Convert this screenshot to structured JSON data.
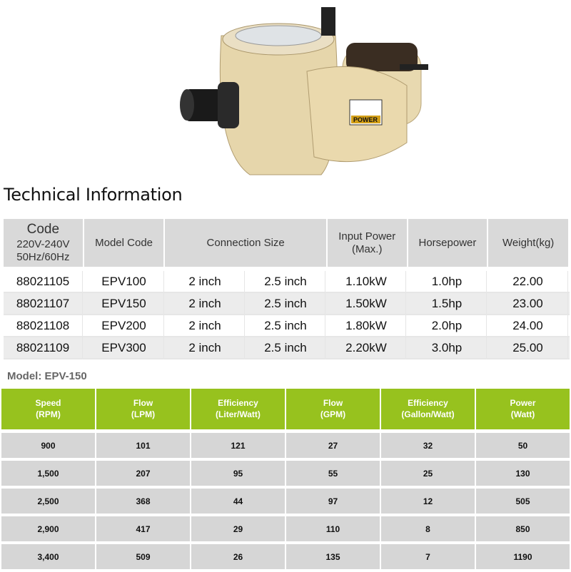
{
  "product_image": {
    "label": "POWER",
    "colors": {
      "body": "#e4d3a8",
      "pipe": "#1a1a1a"
    }
  },
  "title": "Technical Information",
  "spec_table": {
    "headers": {
      "code": "Code",
      "code_sub1": "220V-240V",
      "code_sub2": "50Hz/60Hz",
      "model_code": "Model Code",
      "connection": "Connection Size",
      "input_power": "Input Power",
      "input_power_sub": "(Max.)",
      "horsepower": "Horsepower",
      "weight": "Weight(kg)"
    },
    "rows": [
      [
        "88021105",
        "EPV100",
        "2 inch",
        "2.5 inch",
        "1.10kW",
        "1.0hp",
        "22.00"
      ],
      [
        "88021107",
        "EPV150",
        "2 inch",
        "2.5 inch",
        "1.50kW",
        "1.5hp",
        "23.00"
      ],
      [
        "88021108",
        "EPV200",
        "2 inch",
        "2.5 inch",
        "1.80kW",
        "2.0hp",
        "24.00"
      ],
      [
        "88021109",
        "EPV300",
        "2 inch",
        "2.5 inch",
        "2.20kW",
        "3.0hp",
        "25.00"
      ]
    ]
  },
  "model_label": "Model: EPV-150",
  "perf_table": {
    "accent": "#97c21e",
    "headers": [
      [
        "Speed",
        "(RPM)"
      ],
      [
        "Flow",
        "(LPM)"
      ],
      [
        "Efficiency",
        "(Liter/Watt)"
      ],
      [
        "Flow",
        "(GPM)"
      ],
      [
        "Efficiency",
        "(Gallon/Watt)"
      ],
      [
        "Power",
        "(Watt)"
      ]
    ],
    "rows": [
      [
        "900",
        "101",
        "121",
        "27",
        "32",
        "50"
      ],
      [
        "1,500",
        "207",
        "95",
        "55",
        "25",
        "130"
      ],
      [
        "2,500",
        "368",
        "44",
        "97",
        "12",
        "505"
      ],
      [
        "2,900",
        "417",
        "29",
        "110",
        "8",
        "850"
      ],
      [
        "3,400",
        "509",
        "26",
        "135",
        "7",
        "1190"
      ]
    ]
  }
}
